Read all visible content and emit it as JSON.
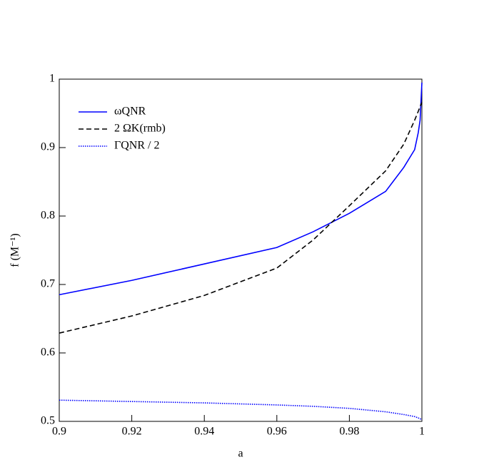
{
  "chart_data": {
    "type": "line",
    "xlabel": "a",
    "ylabel": "f (M⁻¹)",
    "x": [
      0.9,
      0.92,
      0.94,
      0.96,
      0.97,
      0.98,
      0.99,
      0.995,
      0.998,
      0.999,
      0.9995,
      1
    ],
    "series": [
      {
        "name": "ωQNR",
        "color": "#0000ff",
        "style": "solid",
        "values": [
          0.685,
          0.706,
          0.73,
          0.754,
          0.777,
          0.804,
          0.836,
          0.871,
          0.897,
          0.922,
          0.94,
          0.995
        ]
      },
      {
        "name": "2 ΩK(rmb)",
        "color": "#000000",
        "style": "dashed",
        "values": [
          0.629,
          0.654,
          0.684,
          0.724,
          0.765,
          0.815,
          0.866,
          0.905,
          0.94,
          0.953,
          0.96,
          0.966
        ]
      },
      {
        "name": "ΓQNR / 2",
        "color": "#0000ff",
        "style": "dotted",
        "values": [
          0.531,
          0.529,
          0.527,
          0.524,
          0.522,
          0.519,
          0.514,
          0.51,
          0.507,
          0.505,
          0.504,
          0.502
        ]
      }
    ],
    "xlim": [
      0.9,
      1
    ],
    "xticks": [
      0.9,
      0.92,
      0.94,
      0.96,
      0.98,
      1
    ],
    "ylim": [
      0.5,
      1
    ],
    "yticks": [
      0.5,
      0.6,
      0.7,
      0.8,
      0.9,
      1
    ],
    "legend": "upper-left",
    "grid": false
  }
}
